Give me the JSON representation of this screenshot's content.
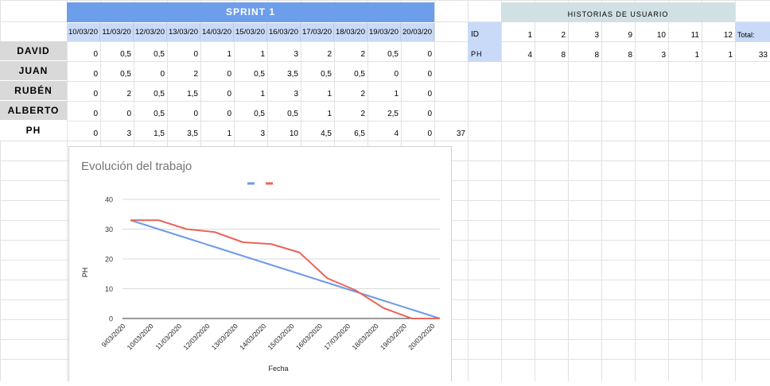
{
  "sprint": {
    "title": "SPRINT 1",
    "dates": [
      "10/03/20",
      "11/03/20",
      "12/03/20",
      "13/03/20",
      "14/03/20",
      "15/03/20",
      "16/03/20",
      "17/03/20",
      "18/03/20",
      "19/03/20",
      "20/03/20"
    ],
    "rows": [
      {
        "name": "DAVID",
        "values": [
          "0",
          "0,5",
          "0,5",
          "0",
          "1",
          "1",
          "3",
          "2",
          "2",
          "0,5",
          "0"
        ]
      },
      {
        "name": "JUAN",
        "values": [
          "0",
          "0,5",
          "0",
          "2",
          "0",
          "0,5",
          "3,5",
          "0,5",
          "0,5",
          "0",
          "0"
        ]
      },
      {
        "name": "RUBÉN",
        "values": [
          "0",
          "2",
          "0,5",
          "1,5",
          "0",
          "1",
          "3",
          "1",
          "2",
          "1",
          "0"
        ]
      },
      {
        "name": "ALBERTO",
        "values": [
          "0",
          "0",
          "0,5",
          "0",
          "0",
          "0,5",
          "0,5",
          "1",
          "2",
          "2,5",
          "0"
        ]
      },
      {
        "name": "PH",
        "values": [
          "0",
          "3",
          "1,5",
          "3,5",
          "1",
          "3",
          "10",
          "4,5",
          "6,5",
          "4",
          "0"
        ]
      }
    ],
    "total": "37"
  },
  "historias": {
    "title": "HISTORIAS DE USUARIO",
    "id_label": "ID",
    "ph_label": "PH",
    "ids": [
      "1",
      "2",
      "3",
      "9",
      "10",
      "11",
      "12"
    ],
    "ph": [
      "4",
      "8",
      "8",
      "8",
      "3",
      "1",
      "1"
    ],
    "total_label": "Total:",
    "total": "33"
  },
  "colors": {
    "header_blue": "#6d9eeb",
    "date_blue": "#c9daf8",
    "teal": "#d0e0e3",
    "ideal": "#6f9ae8",
    "real": "#e8655a",
    "name_bg": "#d9d9d9"
  },
  "chart_data": {
    "type": "line",
    "title": "Evolución del trabajo",
    "xlabel": "Fecha",
    "ylabel": "PH",
    "x": [
      "9/03/2020",
      "10/03/2020",
      "11/03/2020",
      "12/03/2020",
      "13/03/2020",
      "14/03/2020",
      "15/03/2020",
      "16/03/2020",
      "17/03/2020",
      "18/03/2020",
      "19/03/2020",
      "20/03/2020"
    ],
    "ylim": [
      0,
      40
    ],
    "yticks": [
      "0",
      "10",
      "20",
      "30",
      "40"
    ],
    "legend": "top",
    "series": [
      {
        "values": [
          33,
          30,
          27,
          24,
          21,
          18,
          15,
          12,
          9,
          6,
          3,
          0
        ]
      },
      {
        "values": [
          33,
          33,
          30,
          29,
          25.6,
          25,
          22.2,
          13.5,
          9.5,
          3.5,
          0,
          0
        ]
      }
    ]
  }
}
